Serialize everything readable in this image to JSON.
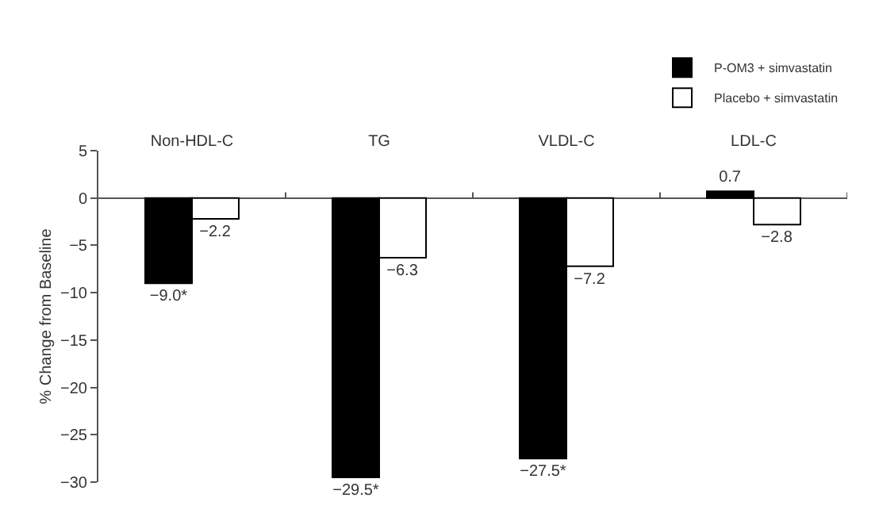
{
  "chart_data": {
    "type": "bar",
    "ylabel": "% Change from Baseline",
    "categories": [
      "Non-HDL-C",
      "TG",
      "VLDL-C",
      "LDL-C"
    ],
    "series": [
      {
        "name": "P-OM3 + simvastatin",
        "color": "#000000",
        "values": [
          -9.0,
          -29.5,
          -27.5,
          0.7
        ],
        "value_labels": [
          "−9.0*",
          "−29.5*",
          "−27.5*",
          "0.7"
        ]
      },
      {
        "name": "Placebo + simvastatin",
        "color": "#ffffff",
        "values": [
          -2.2,
          -6.3,
          -7.2,
          -2.8
        ],
        "value_labels": [
          "−2.2",
          "−6.3",
          "−7.2",
          "−2.8"
        ]
      }
    ],
    "ylim": [
      -30,
      5
    ],
    "yticks": [
      {
        "value": -30,
        "label": "−30"
      },
      {
        "value": -25,
        "label": "−25"
      },
      {
        "value": -20,
        "label": "−20"
      },
      {
        "value": -15,
        "label": "−15"
      },
      {
        "value": -10,
        "label": "−10"
      },
      {
        "value": -5,
        "label": "−5"
      },
      0,
      5
    ],
    "legend": "top right"
  }
}
